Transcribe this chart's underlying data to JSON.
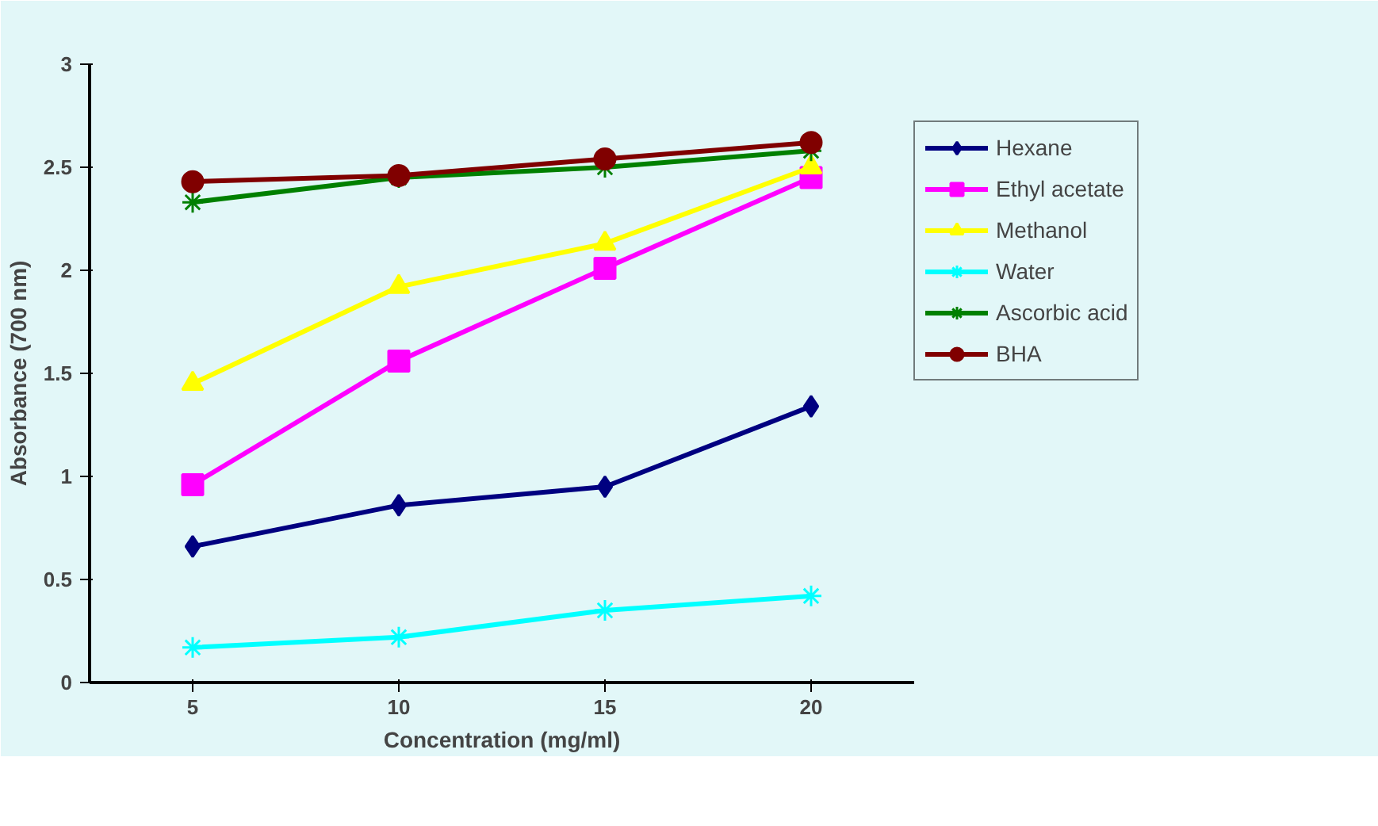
{
  "chart_data": {
    "type": "line",
    "xlabel": "Concentration (mg/ml)",
    "ylabel": "Absorbance (700 nm)",
    "categories": [
      "5",
      "10",
      "15",
      "20"
    ],
    "ylim": [
      0,
      3
    ],
    "yticks": [
      0,
      0.5,
      1,
      1.5,
      2,
      2.5,
      3
    ],
    "grid": false,
    "legend": "right",
    "line_style": "solid",
    "series": [
      {
        "name": "Hexane",
        "color": "#000080",
        "marker": "diamond",
        "values": [
          0.66,
          0.86,
          0.95,
          1.34
        ]
      },
      {
        "name": "Ethyl acetate",
        "color": "#ff00ff",
        "marker": "square",
        "values": [
          0.96,
          1.56,
          2.01,
          2.45
        ]
      },
      {
        "name": "Methanol",
        "color": "#ffff00",
        "marker": "triangle",
        "values": [
          1.45,
          1.92,
          2.13,
          2.5
        ]
      },
      {
        "name": "Water",
        "color": "#00ffff",
        "marker": "cross",
        "values": [
          0.17,
          0.22,
          0.35,
          0.42
        ]
      },
      {
        "name": "Ascorbic acid",
        "color": "#008000",
        "marker": "cross",
        "values": [
          2.33,
          2.45,
          2.5,
          2.58
        ]
      },
      {
        "name": "BHA",
        "color": "#800000",
        "marker": "circle",
        "values": [
          2.43,
          2.46,
          2.54,
          2.62
        ]
      }
    ]
  }
}
